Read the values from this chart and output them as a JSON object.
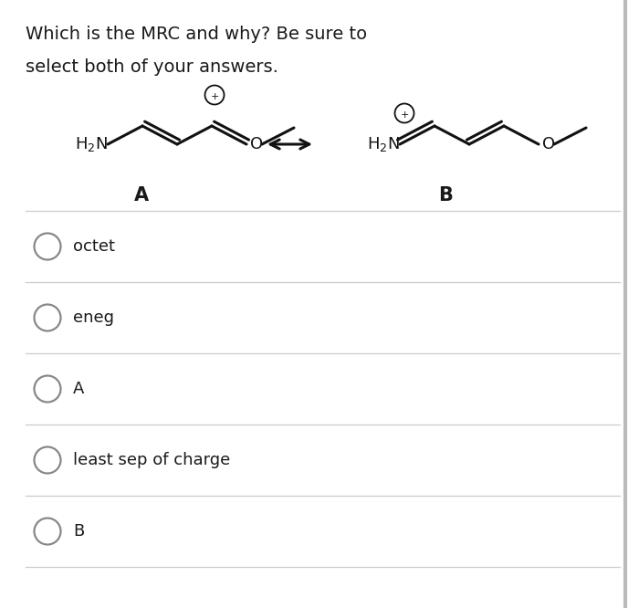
{
  "title_line1": "Which is the MRC and why? Be sure to",
  "title_line2": "select both of your answers.",
  "bg_color": "#ffffff",
  "text_color": "#1a1a1a",
  "options": [
    "octet",
    "eneg",
    "A",
    "least sep of charge",
    "B"
  ],
  "label_A": "A",
  "label_B": "B",
  "fig_width": 7.0,
  "fig_height": 6.66,
  "dpi": 100,
  "divider_color": "#cccccc",
  "circle_color": "#888888",
  "font_size_title": 14,
  "font_size_options": 13,
  "arrow_color": "#111111",
  "bond_color": "#111111",
  "bond_lw": 2.2,
  "struct_fontsize": 13
}
